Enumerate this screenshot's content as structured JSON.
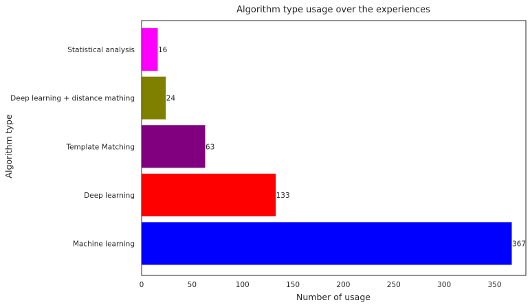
{
  "chart_data": {
    "type": "bar",
    "orientation": "horizontal",
    "title": "Algorithm type usage over the experiences",
    "xlabel": "Number of usage",
    "ylabel": "Algorithm type",
    "categories": [
      "Machine learning",
      "Deep learning",
      "Template Matching",
      "Deep learning + distance mathing",
      "Statistical analysis"
    ],
    "values": [
      367,
      133,
      63,
      24,
      16
    ],
    "data_labels": [
      "367",
      "133",
      "63",
      "24",
      "16"
    ],
    "colors": [
      "#0000ff",
      "#ff0000",
      "#800080",
      "#808000",
      "#ff00ff"
    ],
    "xlim": [
      0,
      381
    ],
    "xticks": [
      0,
      50,
      100,
      150,
      200,
      250,
      300,
      350
    ],
    "xtick_labels": [
      "0",
      "50",
      "100",
      "150",
      "200",
      "250",
      "300",
      "350"
    ],
    "grid": false,
    "legend": "none"
  }
}
